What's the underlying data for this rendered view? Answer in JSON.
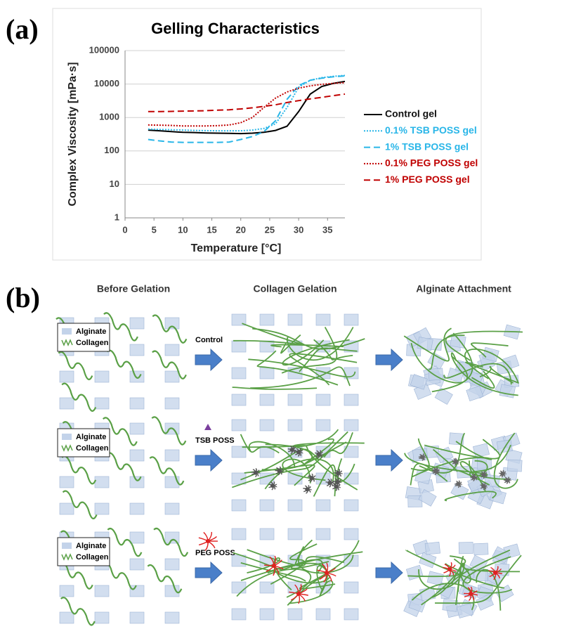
{
  "panel_labels": [
    "(a)",
    "(b)"
  ],
  "chart_data": {
    "type": "line",
    "title": "Gelling Characteristics",
    "x_label": "Temperature [°C]",
    "y_label": "Complex Viscosity [mPa·s]",
    "x": [
      4,
      6,
      8,
      10,
      12,
      14,
      16,
      18,
      20,
      22,
      24,
      26,
      28,
      30,
      32,
      34,
      36,
      38
    ],
    "series": [
      {
        "name": "Control gel",
        "color": "#000000",
        "dash": "solid",
        "values": [
          420,
          400,
          380,
          360,
          355,
          345,
          340,
          335,
          330,
          340,
          360,
          410,
          550,
          1500,
          5000,
          8500,
          10500,
          12000
        ]
      },
      {
        "name": "0.1% TSB POSS gel",
        "color": "#29b6e8",
        "dash": "dotted",
        "values": [
          450,
          440,
          430,
          420,
          410,
          405,
          400,
          400,
          400,
          420,
          470,
          650,
          2000,
          8000,
          13000,
          15500,
          17000,
          18000
        ]
      },
      {
        "name": "1% TSB POSS gel",
        "color": "#29b6e8",
        "dash": "dashed",
        "values": [
          220,
          200,
          185,
          180,
          180,
          180,
          180,
          185,
          220,
          270,
          380,
          800,
          3500,
          9000,
          13000,
          15000,
          16500,
          17500
        ]
      },
      {
        "name": "0.1% PEG POSS gel",
        "color": "#c00000",
        "dash": "dotted",
        "values": [
          600,
          590,
          580,
          560,
          560,
          560,
          570,
          600,
          700,
          1000,
          2000,
          3800,
          5800,
          7500,
          8800,
          9800,
          10500,
          11000
        ]
      },
      {
        "name": "1% PEG POSS gel",
        "color": "#c00000",
        "dash": "dashed",
        "values": [
          1500,
          1500,
          1520,
          1550,
          1570,
          1600,
          1650,
          1700,
          1800,
          1950,
          2150,
          2400,
          2800,
          3200,
          3600,
          4000,
          4500,
          5000
        ]
      }
    ],
    "xlim": [
      0,
      38
    ],
    "xticks": [
      0,
      5,
      10,
      15,
      20,
      25,
      30,
      35
    ],
    "ylim": [
      1,
      100000
    ],
    "yticks": [
      1,
      10,
      100,
      1000,
      10000,
      100000
    ],
    "yscale": "log",
    "grid": true,
    "legend": "right"
  },
  "diagram": {
    "columns": [
      "Before Gelation",
      "Collagen Gelation",
      "Alginate Attachment"
    ],
    "legend": [
      "Alginate",
      "Collagen"
    ],
    "rows": [
      {
        "label": "Control"
      },
      {
        "label": "TSB POSS"
      },
      {
        "label": "PEG POSS"
      }
    ]
  }
}
